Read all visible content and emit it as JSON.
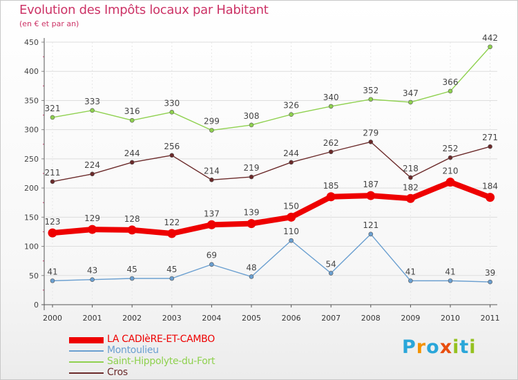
{
  "header": {
    "title": "Evolution des Impôts locaux par Habitant",
    "subtitle": "(en € et par an)"
  },
  "logo": {
    "text": "Proxiti",
    "letters": [
      "P",
      "r",
      "o",
      "x",
      "i",
      "t",
      "i"
    ],
    "colors": [
      "#2aa6d9",
      "#f39200",
      "#2aa6d9",
      "#e84e0f",
      "#95c11f",
      "#2aa6d9",
      "#95c11f"
    ]
  },
  "chart_data": {
    "type": "line",
    "title": "Evolution des Impôts locaux par Habitant",
    "subtitle": "(en € et par an)",
    "xlabel": "",
    "ylabel": "",
    "categories": [
      "2000",
      "2001",
      "2002",
      "2003",
      "2004",
      "2005",
      "2006",
      "2007",
      "2008",
      "2009",
      "2010",
      "2011"
    ],
    "ylim": [
      0,
      450
    ],
    "yticks": [
      0,
      50,
      100,
      150,
      200,
      250,
      300,
      350,
      400,
      450
    ],
    "grid": true,
    "legend_position": "bottom-left",
    "series": [
      {
        "name": "LA CADIèRE-ET-CAMBO",
        "color": "#ee0000",
        "emphasis": true,
        "values": [
          123,
          129,
          128,
          122,
          137,
          139,
          150,
          185,
          187,
          182,
          210,
          184
        ]
      },
      {
        "name": "Montoulieu",
        "color": "#6a9fd0",
        "emphasis": false,
        "values": [
          41,
          43,
          45,
          45,
          69,
          48,
          110,
          54,
          121,
          41,
          41,
          39
        ]
      },
      {
        "name": "Saint-Hippolyte-du-Fort",
        "color": "#8fd14f",
        "emphasis": false,
        "values": [
          321,
          333,
          316,
          330,
          299,
          308,
          326,
          340,
          352,
          347,
          366,
          442
        ]
      },
      {
        "name": "Cros",
        "color": "#6b2a2a",
        "emphasis": false,
        "values": [
          211,
          224,
          244,
          256,
          214,
          219,
          244,
          262,
          279,
          218,
          252,
          271
        ]
      }
    ]
  }
}
